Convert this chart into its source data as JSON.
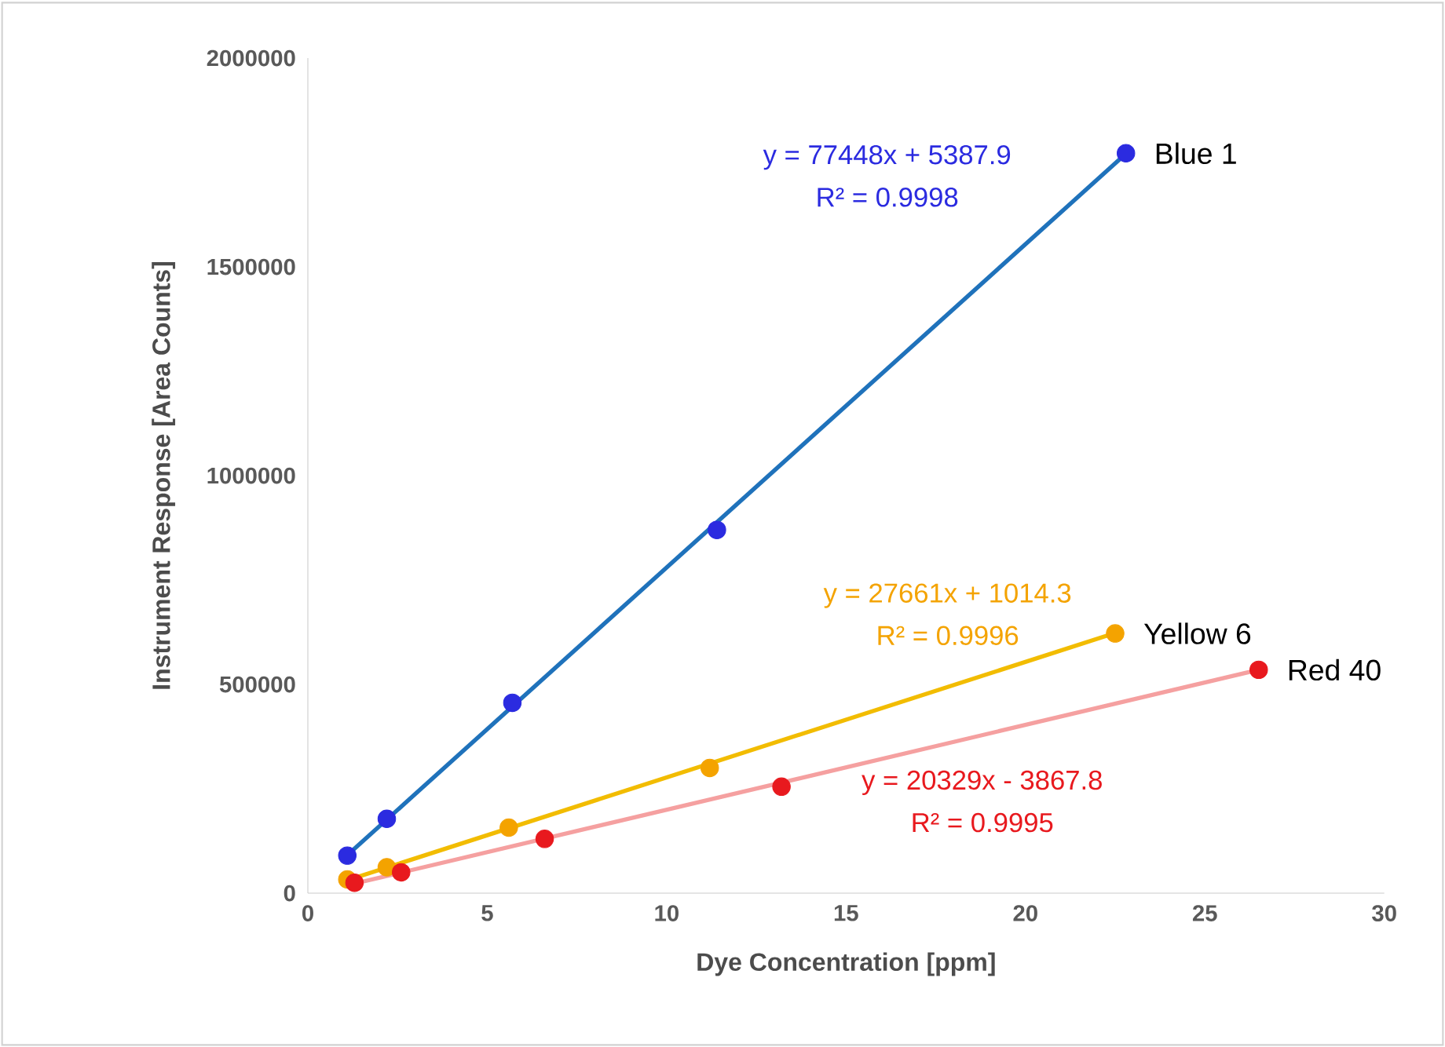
{
  "chart_data": {
    "type": "scatter",
    "xlabel": "Dye Concentration [ppm]",
    "ylabel": "Instrument Response [Area Counts]",
    "xlim": [
      0,
      30
    ],
    "xticks": [
      0,
      5,
      10,
      15,
      20,
      25,
      30
    ],
    "ylim": [
      0,
      2000000
    ],
    "yticks": [
      0,
      500000,
      1000000,
      1500000,
      2000000
    ],
    "marker": "circle",
    "series": [
      {
        "name": "Blue 1",
        "color": "#2b2be0",
        "x": [
          1.1,
          2.2,
          5.7,
          11.4,
          22.8
        ],
        "values": [
          90000,
          178000,
          456000,
          870000,
          1772000
        ]
      },
      {
        "name": "Yellow 6",
        "color": "#f4a300",
        "x": [
          1.1,
          2.2,
          5.6,
          11.2,
          22.5
        ],
        "values": [
          33000,
          62000,
          157000,
          300000,
          622000
        ]
      },
      {
        "name": "Red 40",
        "color": "#e8191e",
        "x": [
          1.3,
          2.6,
          6.6,
          13.2,
          26.5
        ],
        "values": [
          25000,
          50000,
          130000,
          255000,
          535000
        ]
      },
      {
        "type": "line",
        "marker": "none",
        "color": "#1f72bb",
        "x": [
          1.1,
          22.8
        ],
        "values": [
          91000,
          1771000
        ]
      },
      {
        "type": "line",
        "marker": "none",
        "color": "#f2bc00",
        "x": [
          1.1,
          22.5
        ],
        "values": [
          31000,
          623000
        ]
      },
      {
        "type": "line",
        "marker": "none",
        "color": "#f5a0a0",
        "x": [
          1.3,
          26.5
        ],
        "values": [
          23000,
          535000
        ]
      }
    ],
    "annotations": [
      "y = 77448x + 5387.9",
      "R² = 0.9998",
      "y = 27661x + 1014.3",
      "R² = 0.9996",
      "y = 20329x - 3867.8",
      "R² = 0.9995"
    ]
  }
}
